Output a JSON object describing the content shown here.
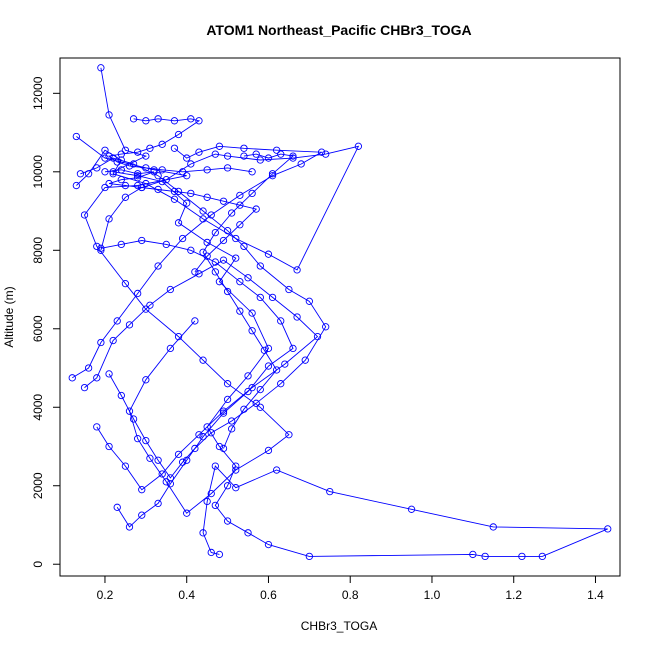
{
  "chart_data": {
    "type": "scatter",
    "title": "ATOM1 Northeast_Pacific CHBr3_TOGA",
    "xlabel": "CHBr3_TOGA",
    "ylabel": "Altitude (m)",
    "xlim": [
      0.09,
      1.46
    ],
    "ylim": [
      -300,
      12900
    ],
    "x_ticks": [
      0.2,
      0.4,
      0.6,
      0.8,
      1.0,
      1.2,
      1.4
    ],
    "x_tick_labels": [
      "0.2",
      "0.4",
      "0.6",
      "0.8",
      "1.0",
      "1.2",
      "1.4"
    ],
    "y_ticks": [
      0,
      2000,
      4000,
      6000,
      8000,
      10000,
      12000
    ],
    "y_tick_labels": [
      "0",
      "2000",
      "4000",
      "6000",
      "8000",
      "10000",
      "12000"
    ],
    "grid": false,
    "legend": "none",
    "series_color": "#0000ff",
    "marker": "open-circle",
    "connect_points": true,
    "series": [
      {
        "x": [
          0.19,
          0.21,
          0.25,
          0.3,
          0.22,
          0.28,
          0.34,
          0.4,
          0.38,
          0.45,
          0.52,
          0.48,
          0.56,
          0.6,
          0.55,
          0.5,
          0.45,
          0.48,
          0.52,
          0.5,
          0.47,
          0.5,
          0.55,
          0.6,
          0.7,
          1.1,
          1.13,
          1.22,
          1.27,
          1.43,
          1.15,
          0.95,
          0.75,
          0.62,
          0.52,
          0.47,
          0.45,
          0.44,
          0.46,
          0.48
        ],
        "y": [
          12650,
          11450,
          10550,
          10400,
          10000,
          9900,
          9750,
          9200,
          8700,
          8200,
          7800,
          7200,
          6400,
          5500,
          4800,
          4200,
          3500,
          3000,
          2500,
          2000,
          1500,
          1100,
          800,
          500,
          200,
          250,
          200,
          200,
          200,
          900,
          950,
          1400,
          1850,
          2400,
          1950,
          2500,
          1600,
          800,
          300,
          250
        ]
      },
      {
        "x": [
          0.13,
          0.2,
          0.32,
          0.4,
          0.28,
          0.2,
          0.15,
          0.18,
          0.25,
          0.3,
          0.38,
          0.44,
          0.5,
          0.58,
          0.65,
          0.6,
          0.52,
          0.46,
          0.4,
          0.35,
          0.31,
          0.28,
          0.26,
          0.3,
          0.36,
          0.42
        ],
        "y": [
          10900,
          10350,
          10050,
          9900,
          9650,
          9600,
          8900,
          8100,
          7150,
          6500,
          5800,
          5200,
          4600,
          4000,
          3300,
          2900,
          2400,
          1800,
          1300,
          2100,
          2700,
          3200,
          3900,
          4700,
          5500,
          6200
        ]
      },
      {
        "x": [
          0.14,
          0.18,
          0.22,
          0.27,
          0.33,
          0.38,
          0.44,
          0.5,
          0.54,
          0.58,
          0.65,
          0.7,
          0.74,
          0.69,
          0.63,
          0.57,
          0.51,
          0.46,
          0.42,
          0.39,
          0.36,
          0.33,
          0.3,
          0.27,
          0.24,
          0.21
        ],
        "y": [
          9950,
          10100,
          10350,
          10200,
          9900,
          9500,
          9000,
          8500,
          8100,
          7600,
          7000,
          6700,
          6050,
          5200,
          4600,
          4100,
          3650,
          3350,
          2950,
          2600,
          2200,
          2650,
          3150,
          3700,
          4300,
          4850
        ]
      },
      {
        "x": [
          0.13,
          0.16,
          0.2,
          0.24,
          0.22,
          0.3,
          0.37,
          0.44,
          0.52,
          0.6,
          0.67,
          0.82,
          0.74,
          0.66,
          0.58,
          0.5,
          0.47,
          0.41,
          0.35,
          0.29,
          0.25,
          0.21,
          0.19
        ],
        "y": [
          9650,
          9950,
          10550,
          10300,
          9950,
          9700,
          9300,
          8800,
          8300,
          7900,
          7500,
          10650,
          10450,
          10350,
          10300,
          10400,
          10450,
          10200,
          9800,
          9600,
          9350,
          8800,
          8000
        ]
      },
      {
        "x": [
          0.15,
          0.18,
          0.22,
          0.26,
          0.31,
          0.36,
          0.43,
          0.49,
          0.55,
          0.61,
          0.67,
          0.72,
          0.64,
          0.56,
          0.49,
          0.43,
          0.38,
          0.34,
          0.29,
          0.25,
          0.21,
          0.18
        ],
        "y": [
          4500,
          4750,
          5700,
          6100,
          6600,
          7000,
          7400,
          7750,
          7300,
          6800,
          6300,
          5800,
          5100,
          4500,
          3900,
          3300,
          2800,
          2300,
          1900,
          2500,
          3000,
          3500
        ]
      },
      {
        "x": [
          0.12,
          0.16,
          0.19,
          0.23,
          0.28,
          0.33,
          0.39,
          0.46,
          0.53,
          0.61,
          0.68,
          0.73,
          0.62,
          0.54,
          0.48,
          0.43,
          0.4,
          0.37
        ],
        "y": [
          4750,
          5000,
          5650,
          6200,
          6900,
          7600,
          8300,
          8900,
          9400,
          9900,
          10200,
          10500,
          10550,
          10600,
          10650,
          10500,
          10350,
          10600
        ]
      },
      {
        "x": [
          0.19,
          0.24,
          0.29,
          0.35,
          0.41,
          0.47,
          0.53,
          0.58,
          0.63,
          0.66,
          0.6,
          0.55,
          0.49,
          0.44,
          0.4,
          0.36,
          0.33,
          0.29,
          0.26,
          0.23
        ],
        "y": [
          8050,
          8150,
          8250,
          8150,
          8000,
          7700,
          7200,
          6800,
          6200,
          5500,
          5050,
          4400,
          3850,
          3250,
          2650,
          2050,
          1550,
          1250,
          950,
          1450
        ]
      },
      {
        "x": [
          0.27,
          0.3,
          0.33,
          0.37,
          0.41,
          0.43,
          0.38,
          0.34,
          0.31,
          0.28,
          0.24,
          0.21,
          0.23,
          0.26,
          0.3,
          0.34,
          0.39,
          0.45,
          0.5,
          0.56
        ],
        "y": [
          11350,
          11300,
          11350,
          11300,
          11350,
          11300,
          10950,
          10700,
          10600,
          10500,
          10450,
          10400,
          10250,
          10150,
          10100,
          10050,
          10000,
          10050,
          10100,
          10000
        ]
      },
      {
        "x": [
          0.54,
          0.57,
          0.6,
          0.63,
          0.66,
          0.61,
          0.56,
          0.51,
          0.47,
          0.44,
          0.47,
          0.5,
          0.53,
          0.56,
          0.59,
          0.62,
          0.58,
          0.54,
          0.51,
          0.49
        ],
        "y": [
          10400,
          10450,
          10350,
          10450,
          10400,
          9950,
          9450,
          8950,
          8450,
          7950,
          7450,
          6950,
          6450,
          5950,
          5450,
          4950,
          4450,
          3950,
          3450,
          2950
        ]
      },
      {
        "x": [
          0.2,
          0.24,
          0.28,
          0.32,
          0.28,
          0.24,
          0.21,
          0.25,
          0.29,
          0.33,
          0.37,
          0.41,
          0.45,
          0.49,
          0.53,
          0.57,
          0.53,
          0.49,
          0.45,
          0.42
        ],
        "y": [
          10000,
          10050,
          9950,
          10000,
          9850,
          9800,
          9700,
          9650,
          9600,
          9550,
          9500,
          9450,
          9350,
          9250,
          9150,
          9050,
          8650,
          8250,
          7850,
          7450
        ]
      }
    ]
  }
}
